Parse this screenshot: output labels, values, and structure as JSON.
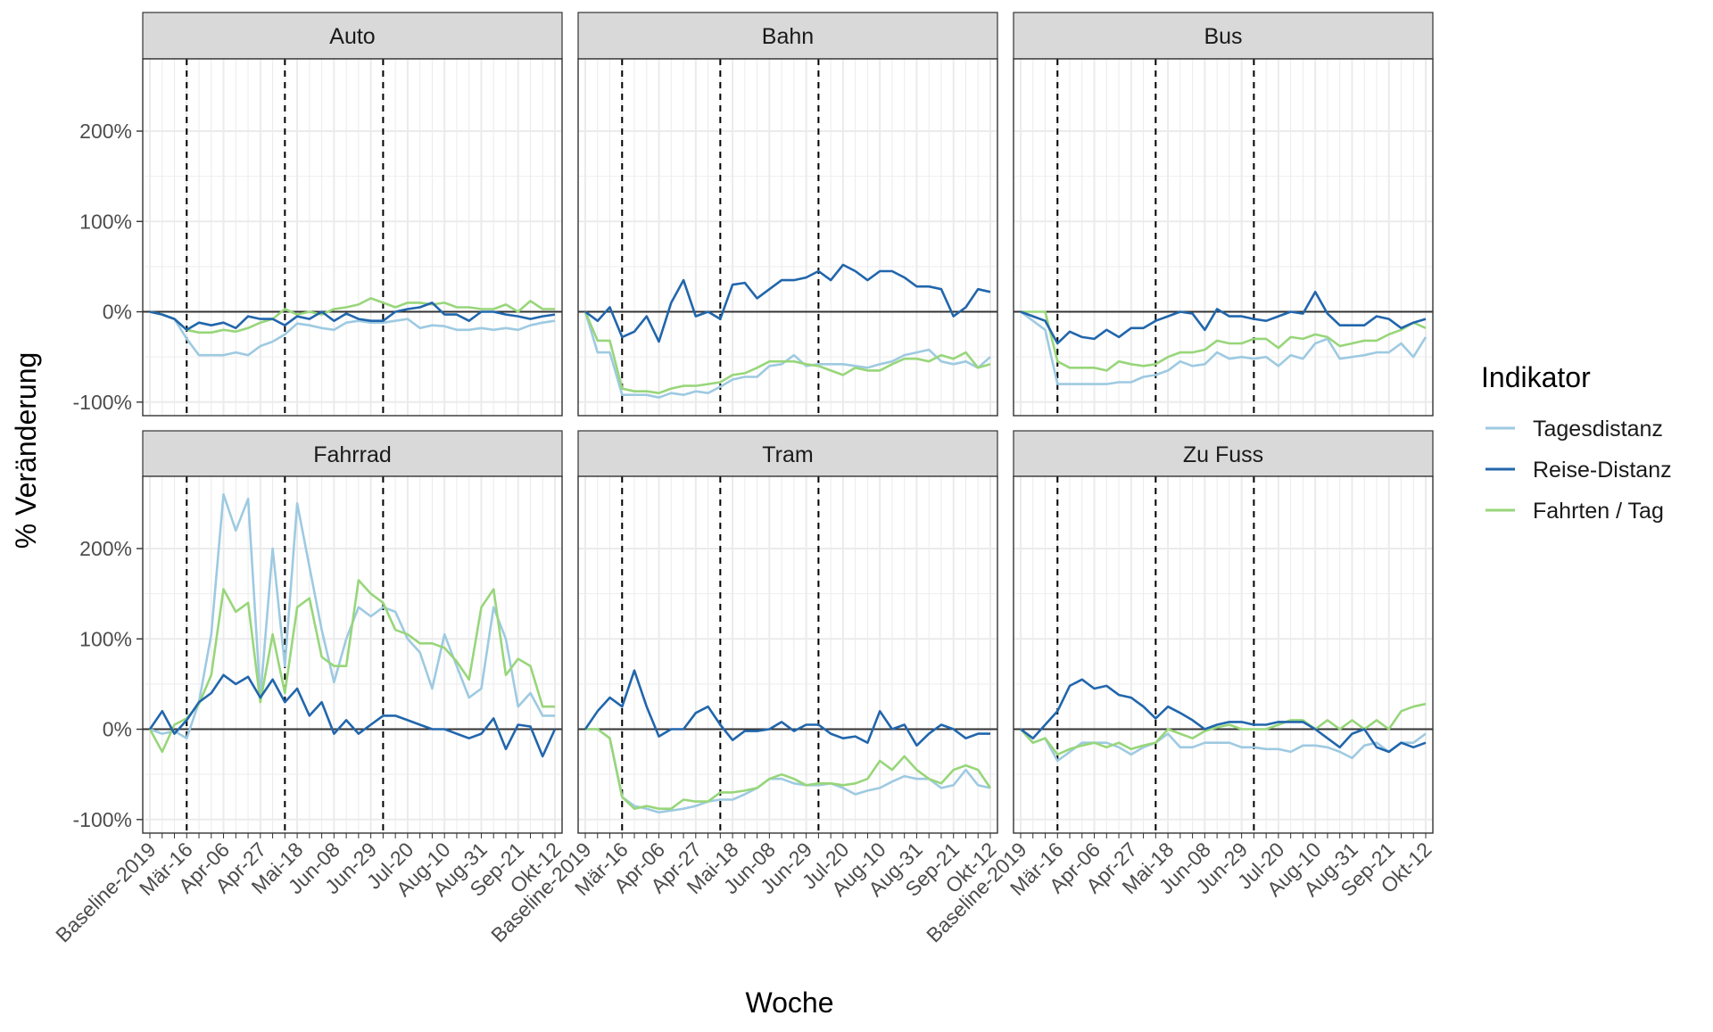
{
  "chart_data": {
    "type": "line",
    "xlabel": "Woche",
    "ylabel": "% Veränderung",
    "ylim": [
      -115,
      280
    ],
    "yticks": [
      -100,
      0,
      100,
      200
    ],
    "ytick_labels": [
      "-100%",
      "0%",
      "100%",
      "200%"
    ],
    "x_tick_labels": [
      "Baseline-2019",
      "Mär-16",
      "Apr-06",
      "Apr-27",
      "Mai-18",
      "Jun-08",
      "Jun-29",
      "Jul-20",
      "Aug-10",
      "Aug-31",
      "Sep-21",
      "Okt-12"
    ],
    "x": [
      "Baseline-2019",
      "Mär-02",
      "Mär-09",
      "Mär-16",
      "Mär-23",
      "Mär-30",
      "Apr-06",
      "Apr-13",
      "Apr-20",
      "Apr-27",
      "Mai-04",
      "Mai-11",
      "Mai-18",
      "Mai-25",
      "Jun-01",
      "Jun-08",
      "Jun-15",
      "Jun-22",
      "Jun-29",
      "Jul-06",
      "Jul-13",
      "Jul-20",
      "Jul-27",
      "Aug-03",
      "Aug-10",
      "Aug-17",
      "Aug-24",
      "Aug-31",
      "Sep-07",
      "Sep-14",
      "Sep-21",
      "Sep-28",
      "Okt-05",
      "Okt-12"
    ],
    "vlines": [
      "Mär-16",
      "Mai-11",
      "Jul-06"
    ],
    "hline": 0,
    "grid": true,
    "legend": {
      "title": "Indikator",
      "position": "right",
      "entries": [
        {
          "name": "Tagesdistanz",
          "color": "#9ecae1"
        },
        {
          "name": "Reise-Distanz",
          "color": "#2166ac"
        },
        {
          "name": "Fahrten / Tag",
          "color": "#98d67a"
        }
      ]
    },
    "panels": [
      {
        "title": "Auto",
        "series": [
          {
            "name": "Tagesdistanz",
            "values": [
              0,
              -3,
              -8,
              -30,
              -48,
              -48,
              -48,
              -45,
              -48,
              -38,
              -33,
              -25,
              -13,
              -15,
              -18,
              -20,
              -12,
              -10,
              -12,
              -12,
              -10,
              -8,
              -18,
              -15,
              -16,
              -20,
              -20,
              -18,
              -20,
              -18,
              -20,
              -15,
              -12,
              -10
            ]
          },
          {
            "name": "Reise-Distanz",
            "values": [
              0,
              -3,
              -8,
              -20,
              -12,
              -15,
              -12,
              -18,
              -5,
              -8,
              -8,
              -15,
              -5,
              -8,
              0,
              -10,
              -2,
              -8,
              -10,
              -10,
              0,
              3,
              5,
              10,
              -3,
              -3,
              -10,
              0,
              0,
              -3,
              -5,
              -8,
              -5,
              -3
            ]
          },
          {
            "name": "Fahrten / Tag",
            "values": [
              0,
              -3,
              -8,
              -20,
              -23,
              -23,
              -20,
              -22,
              -18,
              -12,
              -8,
              3,
              -3,
              0,
              -3,
              3,
              5,
              8,
              15,
              10,
              5,
              10,
              10,
              8,
              10,
              5,
              5,
              3,
              3,
              8,
              0,
              12,
              3,
              3
            ]
          }
        ]
      },
      {
        "title": "Bahn",
        "series": [
          {
            "name": "Tagesdistanz",
            "values": [
              0,
              -45,
              -45,
              -92,
              -92,
              -92,
              -95,
              -90,
              -92,
              -88,
              -90,
              -83,
              -75,
              -72,
              -72,
              -60,
              -58,
              -48,
              -60,
              -58,
              -58,
              -58,
              -60,
              -62,
              -58,
              -55,
              -48,
              -45,
              -42,
              -55,
              -58,
              -55,
              -62,
              -50
            ]
          },
          {
            "name": "Reise-Distanz",
            "values": [
              0,
              -10,
              5,
              -28,
              -22,
              -5,
              -33,
              10,
              35,
              -5,
              0,
              -8,
              30,
              32,
              15,
              25,
              35,
              35,
              38,
              45,
              35,
              52,
              45,
              35,
              45,
              45,
              38,
              28,
              28,
              25,
              -5,
              5,
              25,
              22
            ]
          },
          {
            "name": "Fahrten / Tag",
            "values": [
              0,
              -32,
              -32,
              -85,
              -88,
              -88,
              -90,
              -85,
              -82,
              -82,
              -80,
              -78,
              -70,
              -68,
              -62,
              -55,
              -55,
              -55,
              -58,
              -60,
              -65,
              -70,
              -62,
              -65,
              -65,
              -58,
              -52,
              -52,
              -55,
              -48,
              -52,
              -45,
              -62,
              -58
            ]
          }
        ]
      },
      {
        "title": "Bus",
        "series": [
          {
            "name": "Tagesdistanz",
            "values": [
              0,
              -10,
              -20,
              -80,
              -80,
              -80,
              -80,
              -80,
              -78,
              -78,
              -72,
              -70,
              -65,
              -55,
              -60,
              -58,
              -45,
              -52,
              -50,
              -52,
              -50,
              -60,
              -48,
              -52,
              -35,
              -30,
              -52,
              -50,
              -48,
              -45,
              -45,
              -35,
              -50,
              -28
            ]
          },
          {
            "name": "Reise-Distanz",
            "values": [
              0,
              -5,
              -10,
              -35,
              -22,
              -28,
              -30,
              -20,
              -28,
              -18,
              -18,
              -10,
              -5,
              0,
              -2,
              -20,
              3,
              -5,
              -5,
              -8,
              -10,
              -5,
              0,
              -2,
              22,
              -2,
              -15,
              -15,
              -15,
              -5,
              -8,
              -18,
              -12,
              -8
            ]
          },
          {
            "name": "Fahrten / Tag",
            "values": [
              0,
              0,
              0,
              -55,
              -62,
              -62,
              -62,
              -65,
              -55,
              -58,
              -60,
              -58,
              -50,
              -45,
              -45,
              -42,
              -32,
              -35,
              -35,
              -30,
              -30,
              -40,
              -28,
              -30,
              -25,
              -28,
              -38,
              -35,
              -32,
              -32,
              -25,
              -20,
              -12,
              -18
            ]
          }
        ]
      },
      {
        "title": "Fahrrad",
        "series": [
          {
            "name": "Tagesdistanz",
            "values": [
              0,
              -5,
              -2,
              -10,
              30,
              105,
              260,
              220,
              255,
              35,
              200,
              70,
              250,
              180,
              110,
              52,
              100,
              135,
              125,
              135,
              130,
              100,
              85,
              45,
              105,
              70,
              35,
              45,
              135,
              100,
              25,
              40,
              15,
              15
            ]
          },
          {
            "name": "Reise-Distanz",
            "values": [
              0,
              20,
              -5,
              10,
              30,
              40,
              60,
              50,
              58,
              35,
              55,
              30,
              45,
              15,
              30,
              -5,
              10,
              -5,
              5,
              15,
              15,
              10,
              5,
              0,
              0,
              -5,
              -10,
              -5,
              12,
              -22,
              5,
              3,
              -30,
              0
            ]
          },
          {
            "name": "Fahrten / Tag",
            "values": [
              0,
              -25,
              5,
              12,
              28,
              60,
              155,
              130,
              140,
              30,
              105,
              40,
              135,
              145,
              80,
              70,
              70,
              165,
              150,
              140,
              110,
              105,
              95,
              95,
              90,
              75,
              55,
              135,
              155,
              60,
              78,
              70,
              25,
              25
            ]
          }
        ]
      },
      {
        "title": "Tram",
        "series": [
          {
            "name": "Tagesdistanz",
            "values": [
              0,
              0,
              -10,
              -75,
              -85,
              -88,
              -92,
              -90,
              -88,
              -85,
              -80,
              -78,
              -78,
              -72,
              -65,
              -55,
              -55,
              -60,
              -62,
              -62,
              -60,
              -65,
              -72,
              -68,
              -65,
              -58,
              -52,
              -55,
              -55,
              -65,
              -62,
              -45,
              -62,
              -65
            ]
          },
          {
            "name": "Reise-Distanz",
            "values": [
              0,
              20,
              35,
              25,
              65,
              25,
              -8,
              0,
              0,
              18,
              25,
              5,
              -12,
              -2,
              -2,
              0,
              8,
              -2,
              5,
              5,
              -5,
              -10,
              -8,
              -15,
              20,
              0,
              5,
              -18,
              -5,
              5,
              0,
              -10,
              -5,
              -5
            ]
          },
          {
            "name": "Fahrten / Tag",
            "values": [
              0,
              0,
              -10,
              -75,
              -88,
              -85,
              -88,
              -88,
              -78,
              -80,
              -80,
              -70,
              -70,
              -68,
              -65,
              -55,
              -50,
              -55,
              -62,
              -60,
              -60,
              -62,
              -60,
              -55,
              -35,
              -45,
              -30,
              -45,
              -55,
              -60,
              -45,
              -40,
              -45,
              -65
            ]
          }
        ]
      },
      {
        "title": "Zu Fuss",
        "series": [
          {
            "name": "Tagesdistanz",
            "values": [
              0,
              -15,
              -10,
              -35,
              -25,
              -15,
              -15,
              -15,
              -20,
              -28,
              -20,
              -15,
              -5,
              -20,
              -20,
              -15,
              -15,
              -15,
              -20,
              -20,
              -22,
              -22,
              -25,
              -18,
              -18,
              -20,
              -25,
              -32,
              -18,
              -15,
              -25,
              -15,
              -15,
              -5
            ]
          },
          {
            "name": "Reise-Distanz",
            "values": [
              0,
              -10,
              5,
              20,
              48,
              55,
              45,
              48,
              38,
              35,
              25,
              12,
              25,
              18,
              10,
              0,
              5,
              8,
              8,
              5,
              5,
              8,
              8,
              8,
              0,
              -10,
              -20,
              -5,
              0,
              -20,
              -25,
              -15,
              -20,
              -15
            ]
          },
          {
            "name": "Fahrten / Tag",
            "values": [
              0,
              -15,
              -10,
              -28,
              -22,
              -18,
              -15,
              -20,
              -15,
              -22,
              -18,
              -15,
              0,
              -5,
              -10,
              -2,
              2,
              5,
              0,
              0,
              0,
              5,
              10,
              10,
              0,
              10,
              0,
              10,
              0,
              10,
              0,
              20,
              25,
              28
            ]
          }
        ]
      }
    ]
  }
}
